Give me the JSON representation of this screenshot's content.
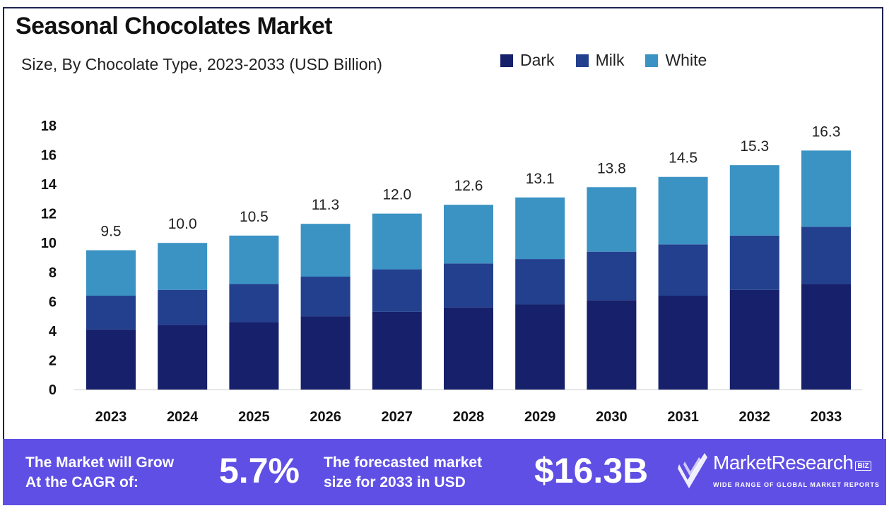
{
  "chart_data": {
    "type": "bar",
    "stacked": true,
    "title": "Seasonal Chocolates Market",
    "subtitle": "Size, By Chocolate Type, 2023-2033 (USD Billion)",
    "categories": [
      "2023",
      "2024",
      "2025",
      "2026",
      "2027",
      "2028",
      "2029",
      "2030",
      "2031",
      "2032",
      "2033"
    ],
    "series": [
      {
        "name": "Dark",
        "color": "#16206b",
        "values": [
          4.1,
          4.4,
          4.6,
          5.0,
          5.3,
          5.6,
          5.8,
          6.1,
          6.4,
          6.8,
          7.2
        ]
      },
      {
        "name": "Milk",
        "color": "#23408f",
        "values": [
          2.3,
          2.4,
          2.6,
          2.7,
          2.9,
          3.0,
          3.1,
          3.3,
          3.5,
          3.7,
          3.9
        ]
      },
      {
        "name": "White",
        "color": "#3b93c4",
        "values": [
          3.1,
          3.2,
          3.3,
          3.6,
          3.8,
          4.0,
          4.2,
          4.4,
          4.6,
          4.8,
          5.2
        ]
      }
    ],
    "totals": [
      "9.5",
      "10.0",
      "10.5",
      "11.3",
      "12.0",
      "12.6",
      "13.1",
      "13.8",
      "14.5",
      "15.3",
      "16.3"
    ],
    "yticks": [
      "0",
      "2",
      "4",
      "6",
      "8",
      "10",
      "12",
      "14",
      "16",
      "18"
    ],
    "ylim": [
      0,
      18
    ],
    "grid": false,
    "legend_position": "top-right"
  },
  "footer": {
    "cagr_label_line1": "The Market will Grow",
    "cagr_label_line2": "At the CAGR of:",
    "cagr_value": "5.7%",
    "forecast_label_line1": "The forecasted market",
    "forecast_label_line2": "size for 2033 in USD",
    "forecast_value": "$16.3B",
    "background": "#5f4fe4"
  },
  "logo": {
    "name": "MarketResearch",
    "badge": "BIZ",
    "tagline": "WIDE RANGE OF GLOBAL MARKET REPORTS"
  }
}
